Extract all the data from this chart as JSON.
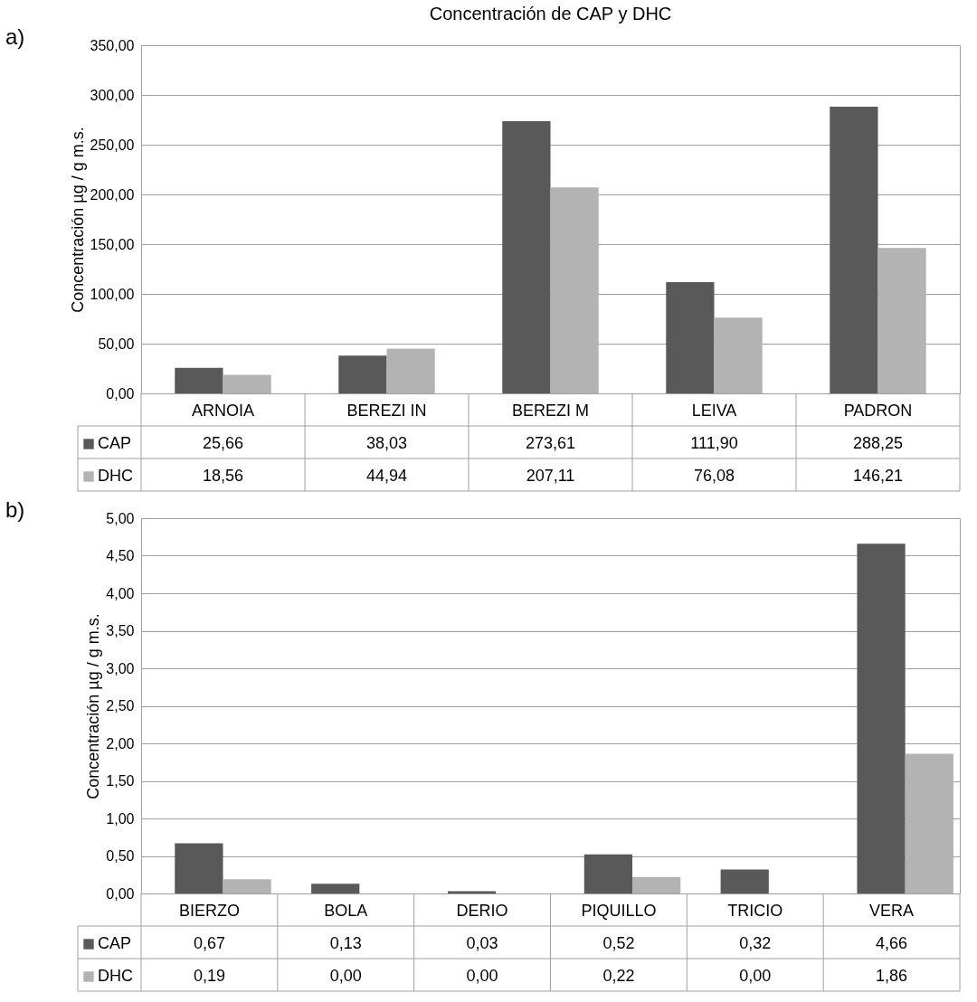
{
  "chart_data": [
    {
      "type": "bar",
      "title": "Concentración de CAP y DHC",
      "ylabel": "Concentración µg / g m.s.",
      "annotations": [
        "a)"
      ],
      "categories": [
        "ARNOIA",
        "BEREZI IN",
        "BEREZI M",
        "LEIVA",
        "PADRON"
      ],
      "series": [
        {
          "name": "CAP",
          "color": "#595959",
          "values": [
            25.66,
            38.03,
            273.61,
            111.9,
            288.25
          ],
          "value_labels": [
            "25,66",
            "38,03",
            "273,61",
            "111,90",
            "288,25"
          ]
        },
        {
          "name": "DHC",
          "color": "#b3b3b3",
          "values": [
            18.56,
            44.94,
            207.11,
            76.08,
            146.21
          ],
          "value_labels": [
            "18,56",
            "44,94",
            "207,11",
            "76,08",
            "146,21"
          ]
        }
      ],
      "ylim": [
        0,
        350
      ],
      "yticks": [
        {
          "value": 0,
          "label": "0,00"
        },
        {
          "value": 50,
          "label": "50,00"
        },
        {
          "value": 100,
          "label": "100,00"
        },
        {
          "value": 150,
          "label": "150,00"
        },
        {
          "value": 200,
          "label": "200,00"
        },
        {
          "value": 250,
          "label": "250,00"
        },
        {
          "value": 300,
          "label": "300,00"
        },
        {
          "value": 350,
          "label": "350,00"
        }
      ],
      "grid": "y",
      "legend": "bottom"
    },
    {
      "type": "bar",
      "ylabel": "Concentración µg / g m.s.",
      "annotations": [
        "b)"
      ],
      "categories": [
        "BIERZO",
        "BOLA",
        "DERIO",
        "PIQUILLO",
        "TRICIO",
        "VERA"
      ],
      "series": [
        {
          "name": "CAP",
          "color": "#595959",
          "values": [
            0.67,
            0.13,
            0.03,
            0.52,
            0.32,
            4.66
          ],
          "value_labels": [
            "0,67",
            "0,13",
            "0,03",
            "0,52",
            "0,32",
            "4,66"
          ]
        },
        {
          "name": "DHC",
          "color": "#b3b3b3",
          "values": [
            0.19,
            0.0,
            0.0,
            0.22,
            0.0,
            1.86
          ],
          "value_labels": [
            "0,19",
            "0,00",
            "0,00",
            "0,22",
            "0,00",
            "1,86"
          ]
        }
      ],
      "ylim": [
        0,
        5
      ],
      "yticks": [
        {
          "value": 0,
          "label": "0,00"
        },
        {
          "value": 0.5,
          "label": "0,50"
        },
        {
          "value": 1,
          "label": "1,00"
        },
        {
          "value": 1.5,
          "label": "1,50"
        },
        {
          "value": 2,
          "label": "2,00"
        },
        {
          "value": 2.5,
          "label": "2,50"
        },
        {
          "value": 3,
          "label": "3,00"
        },
        {
          "value": 3.5,
          "label": "3,50"
        },
        {
          "value": 4,
          "label": "4,00"
        },
        {
          "value": 4.5,
          "label": "4,50"
        },
        {
          "value": 5,
          "label": "5,00"
        }
      ],
      "grid": "y",
      "legend": "bottom"
    }
  ]
}
